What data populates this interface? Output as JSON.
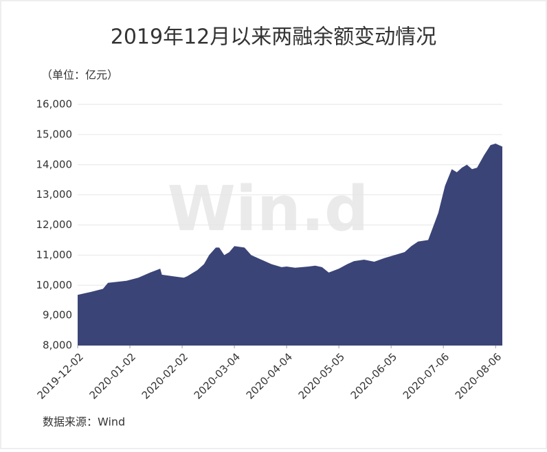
{
  "chart_data": {
    "type": "area",
    "title": "2019年12月以来两融余额变动情况",
    "unit_label": "（单位：亿元）",
    "source": "数据来源：Wind",
    "watermark": "Win.d",
    "color": "#3b4477",
    "grid": true,
    "x": [
      "2019-12-02",
      "2019-12-10",
      "2019-12-17",
      "2019-12-20",
      "2019-12-31",
      "2020-01-07",
      "2020-01-14",
      "2020-01-20",
      "2020-01-21",
      "2020-02-03",
      "2020-02-05",
      "2020-02-11",
      "2020-02-15",
      "2020-02-18",
      "2020-02-22",
      "2020-02-24",
      "2020-02-27",
      "2020-03-01",
      "2020-03-04",
      "2020-03-10",
      "2020-03-14",
      "2020-03-20",
      "2020-03-26",
      "2020-04-01",
      "2020-04-04",
      "2020-04-09",
      "2020-04-17",
      "2020-04-21",
      "2020-04-25",
      "2020-04-29",
      "2020-05-05",
      "2020-05-10",
      "2020-05-14",
      "2020-05-20",
      "2020-05-26",
      "2020-06-01",
      "2020-06-07",
      "2020-06-13",
      "2020-06-17",
      "2020-06-21",
      "2020-06-27",
      "2020-07-03",
      "2020-07-07",
      "2020-07-11",
      "2020-07-14",
      "2020-07-17",
      "2020-07-20",
      "2020-07-23",
      "2020-07-26",
      "2020-07-30",
      "2020-08-03",
      "2020-08-06",
      "2020-08-08",
      "2020-08-10"
    ],
    "values": [
      9680,
      9780,
      9880,
      10080,
      10150,
      10250,
      10420,
      10550,
      10350,
      10250,
      10300,
      10500,
      10700,
      11000,
      11250,
      11250,
      11000,
      11100,
      11300,
      11250,
      11000,
      10850,
      10700,
      10600,
      10620,
      10580,
      10620,
      10650,
      10600,
      10420,
      10550,
      10700,
      10800,
      10850,
      10780,
      10900,
      11000,
      11100,
      11300,
      11450,
      11500,
      12400,
      13300,
      13850,
      13750,
      13900,
      14000,
      13850,
      13900,
      14300,
      14650,
      14700,
      14650,
      14600
    ],
    "xlim": [
      "2019-12-02",
      "2020-08-10"
    ],
    "xticks": [
      "2019-12-02",
      "2020-01-02",
      "2020-02-02",
      "2020-03-04",
      "2020-04-04",
      "2020-05-05",
      "2020-06-05",
      "2020-07-06",
      "2020-08-06"
    ],
    "ylim": [
      8000,
      16000
    ],
    "yticks": [
      {
        "value": 8000,
        "label": "8,000"
      },
      {
        "value": 9000,
        "label": "9,000"
      },
      {
        "value": 10000,
        "label": "10,000"
      },
      {
        "value": 11000,
        "label": "11,000"
      },
      {
        "value": 12000,
        "label": "12,000"
      },
      {
        "value": 13000,
        "label": "13,000"
      },
      {
        "value": 14000,
        "label": "14,000"
      },
      {
        "value": 15000,
        "label": "15,000"
      },
      {
        "value": 16000,
        "label": "16,000"
      }
    ]
  }
}
